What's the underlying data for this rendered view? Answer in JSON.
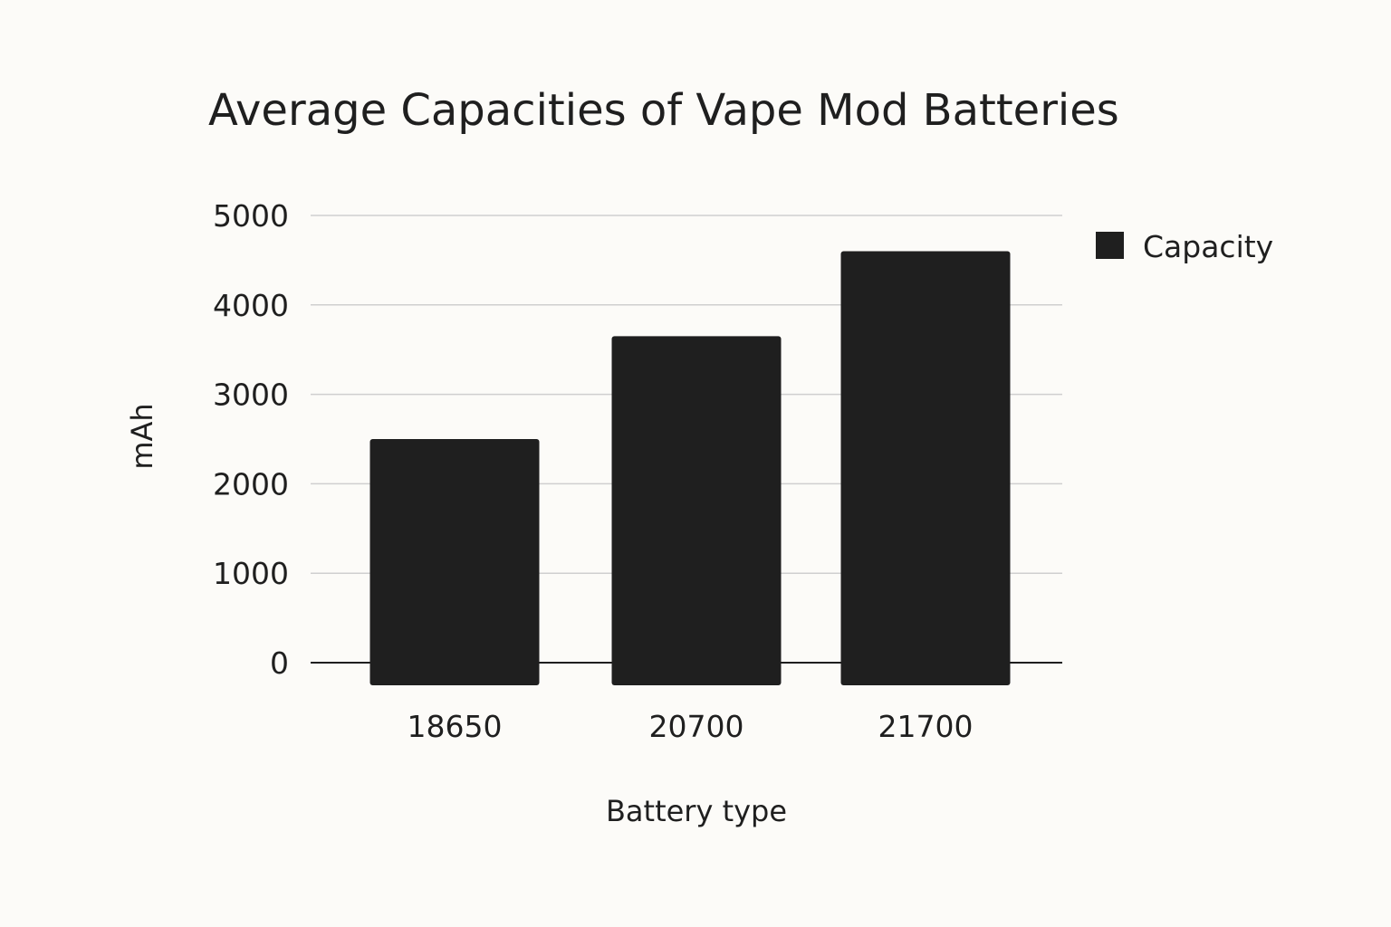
{
  "chart_data": {
    "type": "bar",
    "title": "Average Capacities of Vape Mod Batteries",
    "xlabel": "Battery type",
    "ylabel": "mAh",
    "categories": [
      "18650",
      "20700",
      "21700"
    ],
    "series": [
      {
        "name": "Capacity",
        "values": [
          2500,
          3650,
          4600
        ]
      }
    ],
    "ylim": [
      0,
      5000
    ],
    "yticks": [
      0,
      1000,
      2000,
      3000,
      4000,
      5000
    ],
    "grid": true,
    "legend_position": "top-right",
    "colors": {
      "bar": "#1f1f1f",
      "gridline": "#cfcfcf",
      "baseline": "#1f1f1f",
      "background": "#fcfbf8"
    }
  }
}
